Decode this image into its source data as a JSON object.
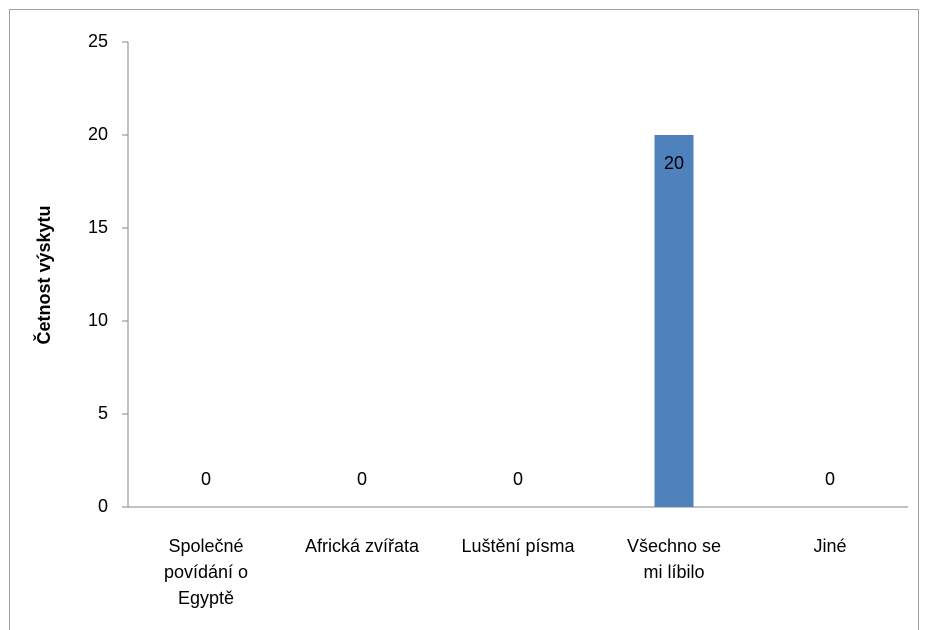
{
  "chart_data": {
    "type": "bar",
    "y_label": "Četnost výskytu",
    "categories": [
      "Společné povídání o Egyptě",
      "Africká zvířata",
      "Luštění písma",
      "Všechno se mi líbilo",
      "Jiné"
    ],
    "values": [
      0,
      0,
      0,
      20,
      0
    ],
    "color": "#4f81bd",
    "ylim": [
      0,
      25
    ],
    "yticks": [
      0,
      5,
      10,
      15,
      20,
      25
    ],
    "grid": false,
    "data_labels": true
  }
}
